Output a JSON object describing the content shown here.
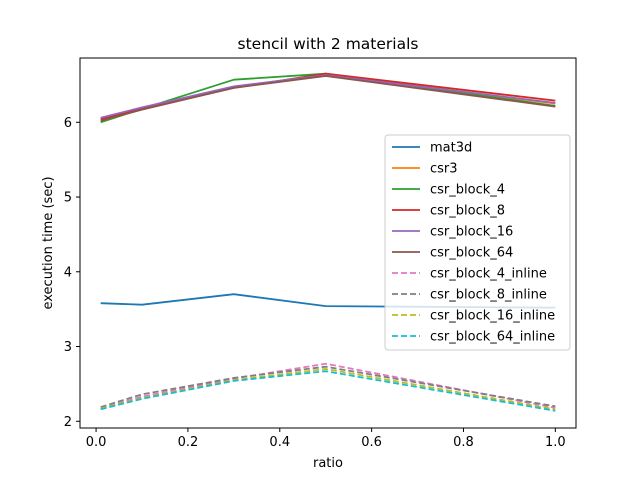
{
  "chart_data": {
    "type": "line",
    "title": "stencil with 2 materials",
    "xlabel": "ratio",
    "ylabel": "execution time (sec)",
    "xlim": [
      -0.035,
      1.045
    ],
    "ylim": [
      1.91,
      6.86
    ],
    "xticks": [
      0.0,
      0.2,
      0.4,
      0.6,
      0.8,
      1.0
    ],
    "xtick_labels": [
      "0.0",
      "0.2",
      "0.4",
      "0.6",
      "0.8",
      "1.0"
    ],
    "yticks": [
      2,
      3,
      4,
      5,
      6
    ],
    "ytick_labels": [
      "2",
      "3",
      "4",
      "5",
      "6"
    ],
    "grid": false,
    "legend_position": "center-right",
    "x": [
      0.01,
      0.1,
      0.3,
      0.5,
      1.0
    ],
    "series": [
      {
        "name": "mat3d",
        "color": "#1f77b4",
        "dash": "solid",
        "values": [
          3.58,
          3.56,
          3.7,
          3.54,
          3.52
        ]
      },
      {
        "name": "csr3",
        "color": "#ff7f0e",
        "dash": "solid",
        "values": [
          6.03,
          6.18,
          6.47,
          6.64,
          6.25
        ]
      },
      {
        "name": "csr_block_4",
        "color": "#2ca02c",
        "dash": "solid",
        "values": [
          6.0,
          6.18,
          6.57,
          6.65,
          6.22
        ]
      },
      {
        "name": "csr_block_8",
        "color": "#d62728",
        "dash": "solid",
        "values": [
          6.04,
          6.18,
          6.46,
          6.65,
          6.29
        ]
      },
      {
        "name": "csr_block_16",
        "color": "#9467bd",
        "dash": "solid",
        "values": [
          6.06,
          6.2,
          6.48,
          6.63,
          6.26
        ]
      },
      {
        "name": "csr_block_64",
        "color": "#8c564b",
        "dash": "solid",
        "values": [
          6.02,
          6.17,
          6.46,
          6.62,
          6.21
        ]
      },
      {
        "name": "csr_block_4_inline",
        "color": "#e377c2",
        "dash": "dashed",
        "values": [
          2.17,
          2.33,
          2.57,
          2.77,
          2.18
        ]
      },
      {
        "name": "csr_block_8_inline",
        "color": "#7f7f7f",
        "dash": "dashed",
        "values": [
          2.19,
          2.36,
          2.58,
          2.73,
          2.2
        ]
      },
      {
        "name": "csr_block_16_inline",
        "color": "#bcbd22",
        "dash": "dashed",
        "values": [
          2.17,
          2.31,
          2.55,
          2.7,
          2.16
        ]
      },
      {
        "name": "csr_block_64_inline",
        "color": "#17becf",
        "dash": "dashed",
        "values": [
          2.16,
          2.3,
          2.54,
          2.67,
          2.14
        ]
      }
    ]
  }
}
